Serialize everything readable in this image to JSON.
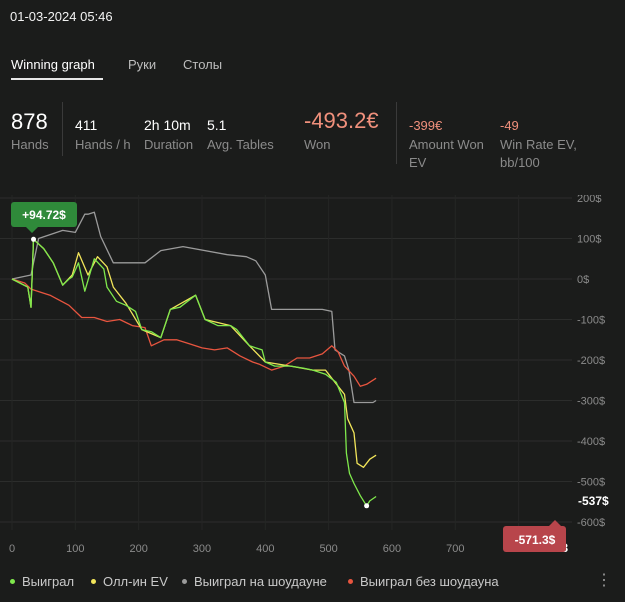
{
  "header": {
    "datetime": "01-03-2024 05:46"
  },
  "tabs": [
    {
      "label": "Winning graph",
      "active": true
    },
    {
      "label": "Руки",
      "active": false
    },
    {
      "label": "Столы",
      "active": false
    }
  ],
  "stats": {
    "hands_value": "878",
    "hands_label": "Hands",
    "hands_per_h_value": "411",
    "hands_per_h_label": "Hands / h",
    "duration_value": "2h 10m",
    "duration_label": "Duration",
    "avg_tables_value": "5.1",
    "avg_tables_label": "Avg. Tables",
    "won_value": "-493.2€",
    "won_label": "Won",
    "amount_won_ev_value": "-399€",
    "amount_won_ev_label": "Amount Won EV",
    "winrate_ev_value": "-49",
    "winrate_ev_label": "Win Rate EV, bb/100"
  },
  "colors": {
    "green": "#7fe84c",
    "yellow": "#f2e55a",
    "grey": "#9b9b9b",
    "red": "#e8553f",
    "negative": "#f0907c",
    "badge_green": "#2f8a3a",
    "badge_red": "#b8454b"
  },
  "chart_data": {
    "type": "line",
    "xlim": [
      0,
      878
    ],
    "ylim": [
      -620,
      220
    ],
    "x_ticks": [
      "0",
      "100",
      "200",
      "300",
      "400",
      "500",
      "600",
      "700",
      "878"
    ],
    "y_ticks": [
      "200$",
      "100$",
      "0$",
      "-100$",
      "-200$",
      "-300$",
      "-400$",
      "-500$",
      "-600$"
    ],
    "series": [
      {
        "name": "Выиграл",
        "color": "#7fe84c",
        "points": [
          [
            0,
            0
          ],
          [
            25,
            -20
          ],
          [
            30,
            -70
          ],
          [
            34,
            98
          ],
          [
            50,
            75
          ],
          [
            65,
            40
          ],
          [
            80,
            -15
          ],
          [
            90,
            0
          ],
          [
            95,
            5
          ],
          [
            105,
            40
          ],
          [
            115,
            -30
          ],
          [
            130,
            50
          ],
          [
            145,
            25
          ],
          [
            150,
            -20
          ],
          [
            165,
            -55
          ],
          [
            180,
            -65
          ],
          [
            195,
            -80
          ],
          [
            205,
            -125
          ],
          [
            220,
            -130
          ],
          [
            235,
            -145
          ],
          [
            250,
            -75
          ],
          [
            265,
            -70
          ],
          [
            290,
            -40
          ],
          [
            305,
            -100
          ],
          [
            325,
            -115
          ],
          [
            345,
            -115
          ],
          [
            355,
            -125
          ],
          [
            375,
            -165
          ],
          [
            395,
            -175
          ],
          [
            400,
            -205
          ],
          [
            415,
            -215
          ],
          [
            440,
            -215
          ],
          [
            460,
            -220
          ],
          [
            475,
            -225
          ],
          [
            495,
            -235
          ],
          [
            512,
            -255
          ],
          [
            525,
            -305
          ],
          [
            528,
            -430
          ],
          [
            533,
            -480
          ],
          [
            540,
            -505
          ],
          [
            550,
            -535
          ],
          [
            560,
            -560
          ],
          [
            565,
            -548
          ],
          [
            575,
            -537
          ]
        ]
      },
      {
        "name": "Олл-ин EV",
        "color": "#f2e55a",
        "points": [
          [
            0,
            0
          ],
          [
            25,
            -20
          ],
          [
            30,
            -70
          ],
          [
            34,
            98
          ],
          [
            50,
            75
          ],
          [
            65,
            40
          ],
          [
            80,
            -15
          ],
          [
            95,
            10
          ],
          [
            105,
            65
          ],
          [
            120,
            10
          ],
          [
            135,
            55
          ],
          [
            150,
            30
          ],
          [
            160,
            -20
          ],
          [
            180,
            -60
          ],
          [
            205,
            -125
          ],
          [
            235,
            -145
          ],
          [
            250,
            -75
          ],
          [
            290,
            -40
          ],
          [
            305,
            -100
          ],
          [
            345,
            -115
          ],
          [
            375,
            -165
          ],
          [
            400,
            -205
          ],
          [
            440,
            -215
          ],
          [
            475,
            -225
          ],
          [
            495,
            -225
          ],
          [
            515,
            -265
          ],
          [
            525,
            -285
          ],
          [
            530,
            -345
          ],
          [
            540,
            -380
          ],
          [
            545,
            -455
          ],
          [
            555,
            -465
          ],
          [
            565,
            -445
          ],
          [
            575,
            -435
          ]
        ]
      },
      {
        "name": "Выиграл на шоудауне",
        "color": "#9b9b9b",
        "points": [
          [
            0,
            0
          ],
          [
            30,
            10
          ],
          [
            42,
            100
          ],
          [
            80,
            120
          ],
          [
            100,
            115
          ],
          [
            115,
            160
          ],
          [
            120,
            160
          ],
          [
            130,
            165
          ],
          [
            140,
            105
          ],
          [
            160,
            40
          ],
          [
            210,
            40
          ],
          [
            235,
            70
          ],
          [
            270,
            80
          ],
          [
            340,
            60
          ],
          [
            370,
            55
          ],
          [
            385,
            45
          ],
          [
            400,
            10
          ],
          [
            410,
            -75
          ],
          [
            490,
            -75
          ],
          [
            505,
            -80
          ],
          [
            510,
            -175
          ],
          [
            525,
            -190
          ],
          [
            532,
            -225
          ],
          [
            540,
            -305
          ],
          [
            570,
            -305
          ],
          [
            575,
            -300
          ]
        ]
      },
      {
        "name": "Выиграл без шоудауна",
        "color": "#e8553f",
        "points": [
          [
            0,
            0
          ],
          [
            20,
            -10
          ],
          [
            30,
            -25
          ],
          [
            60,
            -40
          ],
          [
            90,
            -65
          ],
          [
            110,
            -95
          ],
          [
            130,
            -95
          ],
          [
            150,
            -105
          ],
          [
            170,
            -100
          ],
          [
            190,
            -115
          ],
          [
            210,
            -120
          ],
          [
            220,
            -165
          ],
          [
            240,
            -150
          ],
          [
            260,
            -150
          ],
          [
            280,
            -160
          ],
          [
            300,
            -170
          ],
          [
            320,
            -175
          ],
          [
            340,
            -170
          ],
          [
            360,
            -190
          ],
          [
            380,
            -205
          ],
          [
            390,
            -210
          ],
          [
            410,
            -225
          ],
          [
            430,
            -215
          ],
          [
            450,
            -195
          ],
          [
            470,
            -195
          ],
          [
            490,
            -185
          ],
          [
            505,
            -165
          ],
          [
            515,
            -180
          ],
          [
            525,
            -215
          ],
          [
            540,
            -240
          ],
          [
            550,
            -265
          ],
          [
            560,
            -260
          ],
          [
            575,
            -245
          ]
        ]
      }
    ],
    "annotations": {
      "max_label": "+94.72$",
      "min_label": "-571.3$",
      "end_label": "-537$"
    }
  },
  "legend": [
    {
      "label": "Выиграл",
      "color": "#7fe84c"
    },
    {
      "label": "Олл-ин EV",
      "color": "#f2e55a"
    },
    {
      "label": "Выиграл на шоудауне",
      "color": "#9b9b9b"
    },
    {
      "label": "Выиграл без шоудауна",
      "color": "#e8553f"
    }
  ],
  "menu_icon": "more-vertical-icon"
}
